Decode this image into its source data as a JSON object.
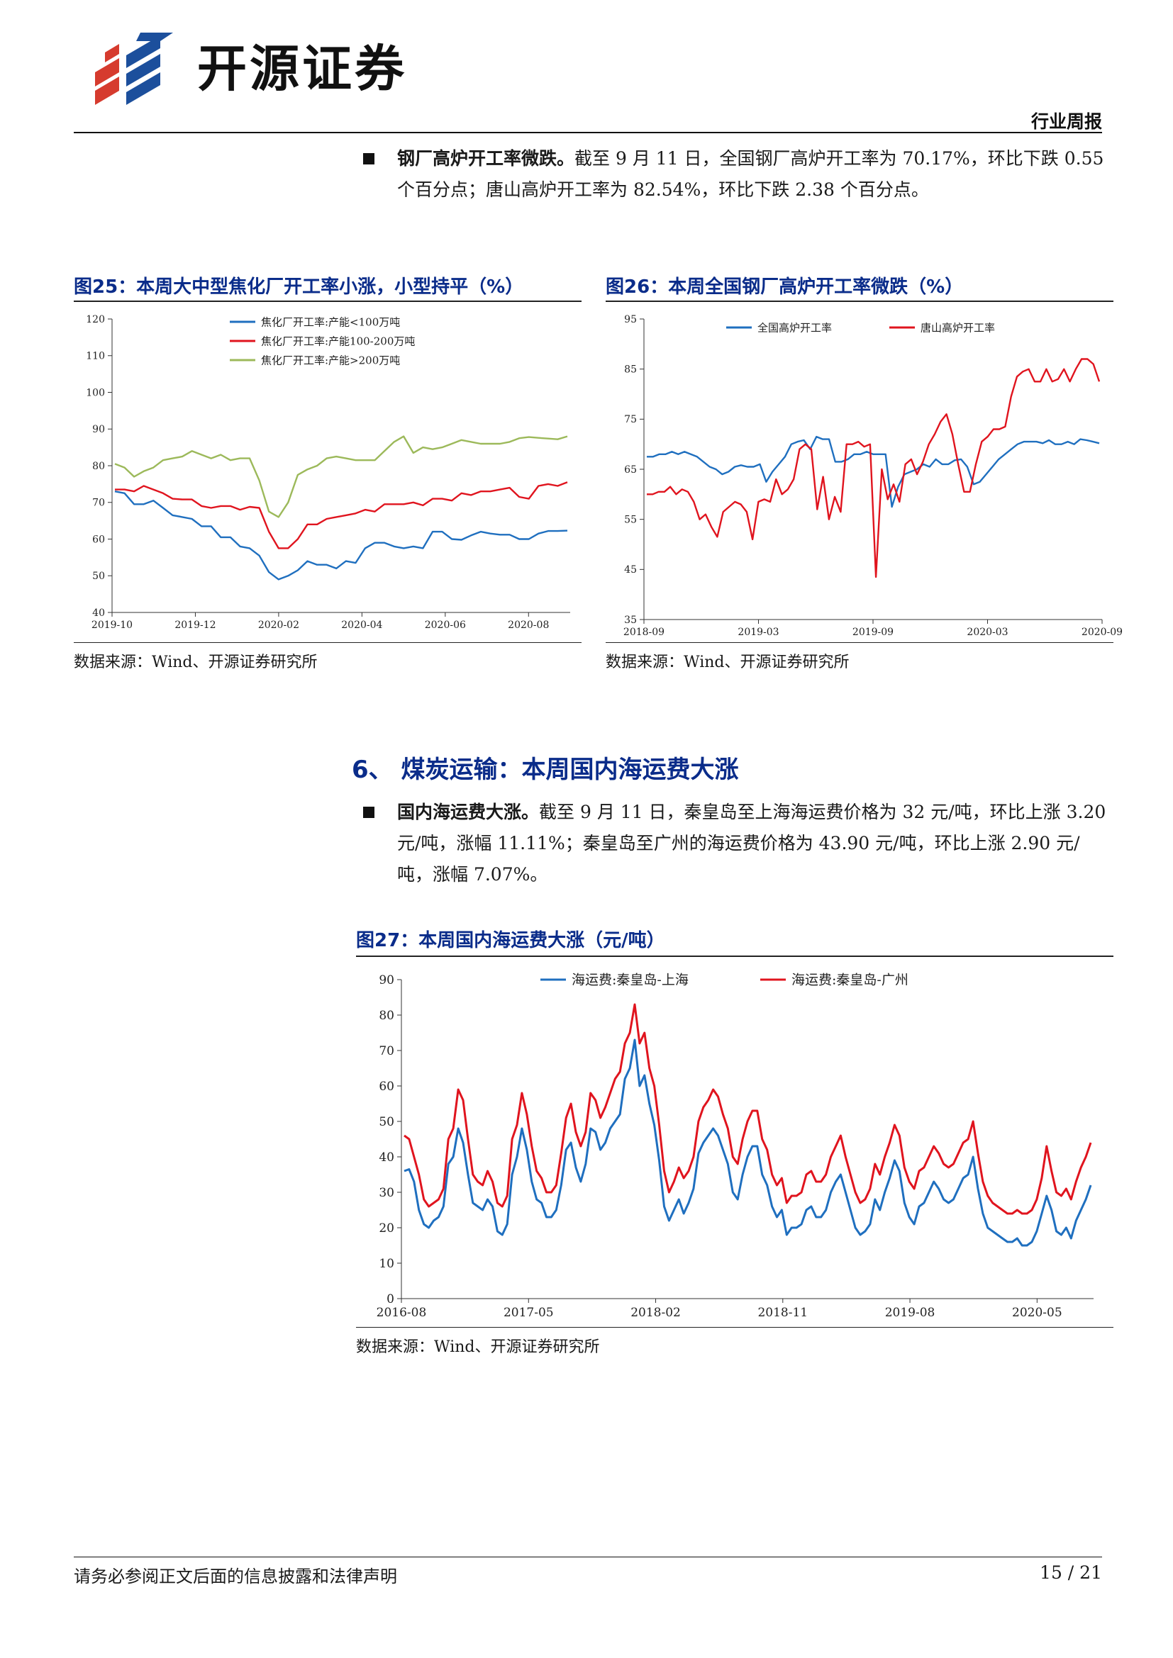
{
  "header": {
    "brand": "开源证券",
    "report_type": "行业周报"
  },
  "bullet1": {
    "bold": "钢厂高炉开工率微跌。",
    "text": "截至 9 月 11 日，全国钢厂高炉开工率为 70.17%，环比下跌 0.55 个百分点；唐山高炉开工率为 82.54%，环比下跌 2.38 个百分点。"
  },
  "fig25": {
    "title": "图25：本周大中型焦化厂开工率小涨，小型持平（%）",
    "source": "数据来源：Wind、开源证券研究所"
  },
  "fig26": {
    "title": "图26：本周全国钢厂高炉开工率微跌（%）",
    "source": "数据来源：Wind、开源证券研究所"
  },
  "section": {
    "title": "6、  煤炭运输：本周国内海运费大涨"
  },
  "bullet2": {
    "bold": "国内海运费大涨。",
    "text": "截至 9 月 11 日，秦皇岛至上海海运费价格为 32 元/吨，环比上涨 3.20 元/吨，涨幅 11.11%；秦皇岛至广州的海运费价格为 43.90 元/吨，环比上涨 2.90 元/吨，涨幅 7.07%。"
  },
  "fig27": {
    "title": "图27：本周国内海运费大涨（元/吨）",
    "source": "数据来源：Wind、开源证券研究所"
  },
  "footer": {
    "note": "请务必参阅正文后面的信息披露和法律声明",
    "page": "15 / 21"
  },
  "chart_data": [
    {
      "id": "fig25",
      "type": "line",
      "ylim": [
        40,
        120
      ],
      "yticks": [
        40,
        50,
        60,
        70,
        80,
        90,
        100,
        110,
        120
      ],
      "x_start": "2019-10",
      "x_end": "2020-09",
      "xticks": [
        "2019-10",
        "2019-12",
        "2020-02",
        "2020-04",
        "2020-06",
        "2020-08"
      ],
      "legend_position": "top-center",
      "series": [
        {
          "name": "焦化厂开工率:产能<100万吨",
          "color": "#1f6fbf",
          "values": [
            73,
            72.5,
            69.5,
            69.5,
            70.5,
            68.5,
            66.5,
            66,
            65.5,
            63.5,
            63.5,
            60.5,
            60.5,
            58,
            57.5,
            55.5,
            51,
            49,
            50,
            51.5,
            54,
            53,
            53,
            52,
            54,
            53.5,
            57.5,
            59,
            59,
            58,
            57.5,
            58,
            57.5,
            62,
            62,
            60,
            59.8,
            61,
            62,
            61.5,
            61.2,
            61.2,
            60,
            60,
            61.5,
            62.2,
            62.2,
            62.3
          ]
        },
        {
          "name": "焦化厂开工率:产能100-200万吨",
          "color": "#e0141e",
          "values": [
            73.5,
            73.5,
            73,
            74.5,
            73.5,
            72.5,
            71,
            70.8,
            70.8,
            69,
            68.5,
            69,
            69,
            68,
            68.8,
            68.5,
            62,
            57.5,
            57.5,
            60,
            64,
            64,
            65.5,
            66,
            66.5,
            67,
            68,
            67.5,
            69.5,
            69.5,
            69.5,
            70,
            69.2,
            71,
            71,
            70.5,
            72.5,
            72,
            73,
            73,
            73.5,
            74,
            71.5,
            71,
            74.5,
            75,
            74.5,
            75.5
          ]
        },
        {
          "name": "焦化厂开工率:产能>200万吨",
          "color": "#9cb95a",
          "values": [
            80.5,
            79.5,
            77,
            78.5,
            79.5,
            81.5,
            82,
            82.5,
            84,
            83,
            82,
            83,
            81.5,
            82,
            82,
            76,
            67.5,
            66,
            70,
            77.5,
            79,
            80,
            82,
            82.5,
            82,
            81.5,
            81.5,
            81.5,
            84,
            86.5,
            88,
            83.5,
            85,
            84.5,
            85,
            86,
            87,
            86.5,
            86,
            86,
            86,
            86.5,
            87.5,
            87.8,
            87.6,
            87.4,
            87.2,
            88
          ]
        }
      ]
    },
    {
      "id": "fig26",
      "type": "line",
      "ylim": [
        35,
        95
      ],
      "yticks": [
        35,
        45,
        55,
        65,
        75,
        85,
        95
      ],
      "x_start": "2018-09",
      "x_end": "2020-09",
      "xticks": [
        "2018-09",
        "2019-03",
        "2019-09",
        "2020-03",
        "2020-09"
      ],
      "legend_position": "top-left",
      "series": [
        {
          "name": "全国高炉开工率",
          "color": "#1f6fbf",
          "values": [
            67.5,
            67.5,
            68,
            68,
            68.5,
            68,
            68.5,
            68,
            67.5,
            66.5,
            65.5,
            65,
            64,
            64.5,
            65.5,
            65.8,
            65.5,
            65.5,
            66,
            62.5,
            64.5,
            66,
            67.5,
            70,
            70.5,
            70.8,
            69,
            71.5,
            71,
            71,
            66.5,
            66.5,
            67,
            68,
            68,
            68.5,
            68,
            68,
            68,
            57.5,
            61.5,
            64,
            64.5,
            65,
            66,
            65.5,
            67,
            66,
            66,
            66.8,
            67,
            65.5,
            62,
            62.5,
            64,
            65.5,
            67,
            68,
            69,
            70,
            70.5,
            70.5,
            70.5,
            70.2,
            70.8,
            70,
            70,
            70.5,
            70,
            71,
            70.8,
            70.5,
            70.2
          ]
        },
        {
          "name": "唐山高炉开工率",
          "color": "#e0141e",
          "values": [
            60,
            60,
            60.5,
            60.5,
            61.5,
            60,
            61,
            60.5,
            58.5,
            55,
            56,
            53.5,
            51.5,
            56.5,
            57.5,
            58.5,
            58,
            56.5,
            51,
            58.5,
            59,
            58.5,
            63,
            60,
            61,
            63,
            69,
            70,
            69,
            57,
            63.5,
            55,
            59.5,
            56.5,
            70,
            70,
            70.5,
            69.5,
            70,
            43.5,
            65,
            59,
            62,
            58.5,
            66,
            67,
            64,
            66.5,
            70,
            72,
            74.5,
            76,
            72,
            66,
            60.5,
            60.5,
            66,
            70.5,
            71.5,
            73,
            73,
            73.5,
            79.5,
            83.5,
            84.5,
            85,
            82.5,
            82.5,
            85,
            82.5,
            83,
            85,
            82.5,
            85,
            87,
            87,
            86,
            82.5
          ]
        }
      ]
    },
    {
      "id": "fig27",
      "type": "line",
      "ylim": [
        0,
        90
      ],
      "yticks": [
        0,
        10,
        20,
        30,
        40,
        50,
        60,
        70,
        80,
        90
      ],
      "x_start": "2016-08",
      "x_end": "2020-09",
      "xticks": [
        "2016-08",
        "2017-05",
        "2018-02",
        "2018-11",
        "2019-08",
        "2020-05"
      ],
      "legend_position": "top-center",
      "series": [
        {
          "name": "海运费:秦皇岛-上海",
          "color": "#1f6fbf",
          "values": [
            36,
            36.5,
            33,
            25,
            21,
            20,
            22,
            23,
            26,
            38,
            40,
            48,
            44,
            35,
            27,
            26,
            25,
            28,
            26,
            19,
            18,
            21,
            35,
            40,
            48,
            42,
            33,
            28,
            27,
            23,
            23,
            25,
            32,
            42,
            44,
            37,
            33,
            38,
            48,
            47,
            42,
            44,
            48,
            50,
            52,
            62,
            65,
            73,
            60,
            63,
            55,
            49,
            39,
            26,
            22,
            25,
            28,
            24,
            27,
            31,
            41,
            44,
            46,
            48,
            46,
            42,
            38,
            30,
            28,
            35,
            40,
            43,
            43,
            35,
            32,
            26,
            23,
            25,
            18,
            20,
            20,
            21,
            25,
            26,
            23,
            23,
            25,
            30,
            33,
            35,
            30,
            25,
            20,
            18,
            19,
            21,
            28,
            25,
            30,
            34,
            39,
            36,
            27,
            23,
            21,
            26,
            27,
            30,
            33,
            31,
            28,
            27,
            28,
            31,
            34,
            35,
            40,
            31,
            24,
            20,
            19,
            18,
            17,
            16,
            16,
            17,
            15,
            15,
            16,
            19,
            24,
            29,
            25,
            19,
            18,
            20,
            17,
            22,
            25,
            28,
            32
          ]
        },
        {
          "name": "海运费:秦皇岛-广州",
          "color": "#e0141e",
          "values": [
            46,
            45,
            40,
            35,
            28,
            26,
            27,
            28,
            31,
            45,
            48,
            59,
            56,
            45,
            35,
            33,
            32,
            36,
            33,
            27,
            26,
            29,
            45,
            49,
            58,
            52,
            43,
            36,
            34,
            30,
            30,
            32,
            41,
            51,
            55,
            47,
            43,
            47,
            58,
            56,
            51,
            54,
            58,
            62,
            64,
            72,
            75,
            83,
            72,
            75,
            65,
            60,
            49,
            36,
            30,
            33,
            37,
            34,
            36,
            40,
            50,
            54,
            56,
            59,
            57,
            52,
            48,
            40,
            38,
            45,
            50,
            53,
            53,
            45,
            42,
            35,
            32,
            34,
            27,
            29,
            29,
            30,
            35,
            36,
            33,
            33,
            35,
            40,
            43,
            46,
            40,
            35,
            30,
            27,
            28,
            31,
            38,
            35,
            40,
            44,
            49,
            46,
            37,
            33,
            31,
            36,
            37,
            40,
            43,
            41,
            38,
            37,
            38,
            41,
            44,
            45,
            50,
            41,
            33,
            29,
            27,
            26,
            25,
            24,
            24,
            25,
            24,
            24,
            25,
            28,
            34,
            43,
            36,
            30,
            29,
            31,
            28,
            33,
            37,
            40,
            44
          ]
        }
      ]
    }
  ]
}
